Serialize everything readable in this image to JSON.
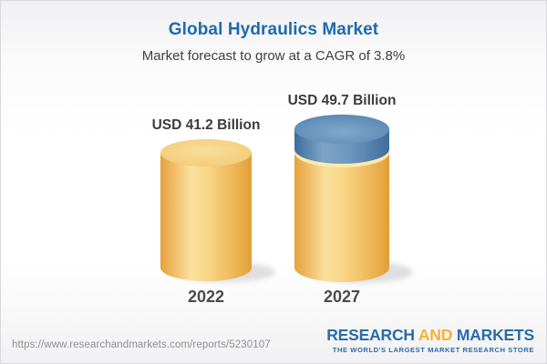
{
  "header": {
    "title": "Global Hydraulics Market",
    "subtitle": "Market forecast to grow at a CAGR of 3.8%"
  },
  "chart_data": {
    "type": "bar",
    "variant": "3d-cylinder",
    "title": "Global Hydraulics Market",
    "subtitle": "Market forecast to grow at a CAGR of 3.8%",
    "cagr_percent": 3.8,
    "unit": "USD Billion",
    "categories": [
      "2022",
      "2027"
    ],
    "values": [
      41.2,
      49.7
    ],
    "value_labels": [
      "USD 41.2 Billion",
      "USD 49.7 Billion"
    ],
    "growth_cap_on": "2027",
    "colors": {
      "base_gold": "#F3CB74",
      "gold_edge": "#E3A33B",
      "gold_highlight": "#FAE09D",
      "growth_blue": "#5E8BB5",
      "blue_edge": "#3E6C9B",
      "label_text": "#3c3c3f",
      "title_blue": "#1e6bae"
    },
    "legend": false,
    "grid": false
  },
  "footer": {
    "url": "https://www.researchandmarkets.com/reports/5230107",
    "logo": {
      "word1": "RESEARCH",
      "word2": "AND",
      "word3": "MARKETS",
      "tagline": "THE WORLD'S LARGEST MARKET RESEARCH STORE"
    }
  }
}
